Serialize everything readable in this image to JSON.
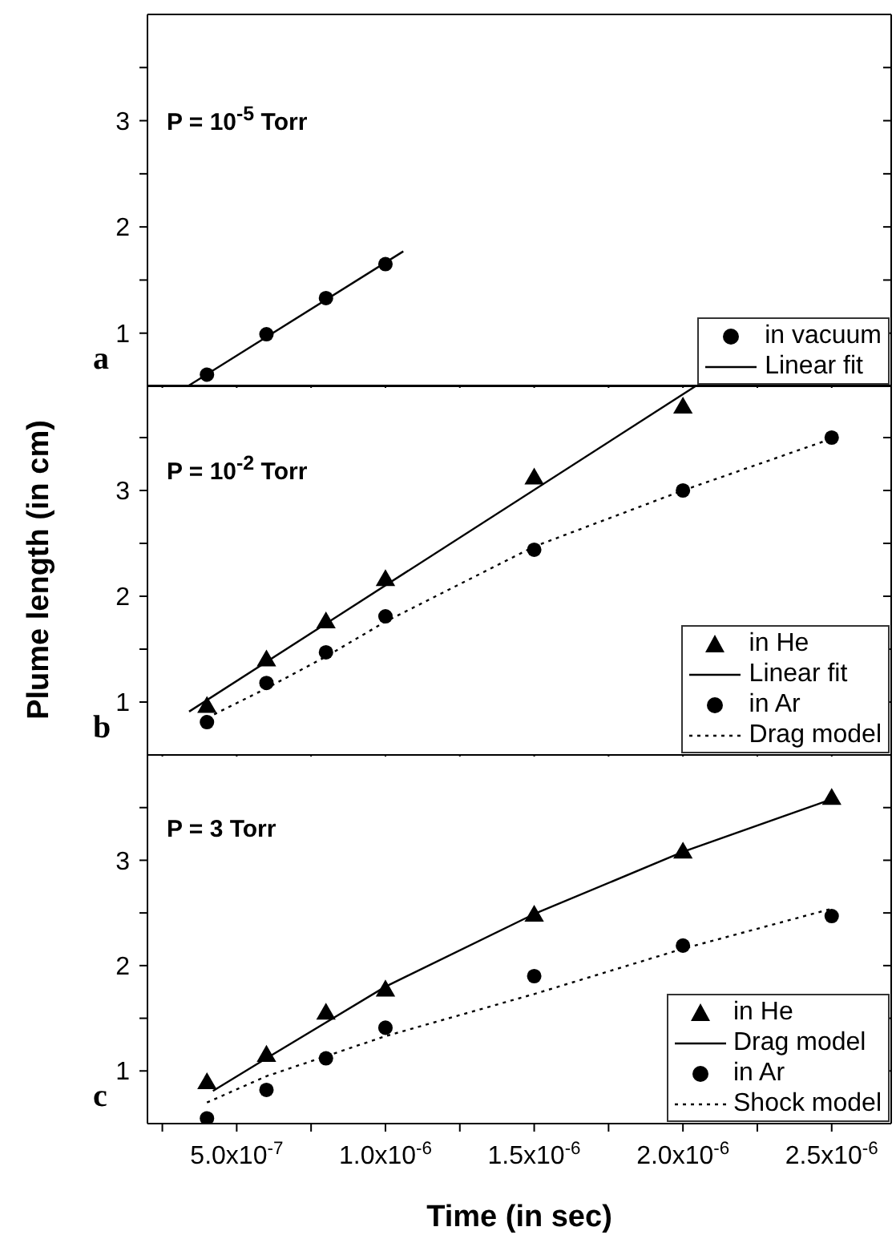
{
  "chart_data": [
    {
      "type": "scatter",
      "annotations": [
        "P = 10$^{-5}$ Torr",
        "a"
      ],
      "xlim": [
        2e-07,
        2.7e-06
      ],
      "ylim": [
        0.5,
        4.0
      ],
      "xticks": [
        {
          "value": 2.5e-07,
          "label": null
        },
        {
          "value": 5e-07,
          "label": null
        },
        {
          "value": 7.5e-07,
          "label": null
        },
        {
          "value": 1e-06,
          "label": null
        },
        {
          "value": 1.25e-06,
          "label": null
        },
        {
          "value": 1.5e-06,
          "label": null
        },
        {
          "value": 1.75e-06,
          "label": null
        },
        {
          "value": 2e-06,
          "label": null
        },
        {
          "value": 2.25e-06,
          "label": null
        },
        {
          "value": 2.5e-06,
          "label": null
        }
      ],
      "yticks": [
        1,
        {
          "value": 1.5,
          "label": null
        },
        2,
        {
          "value": 2.5,
          "label": null
        },
        3,
        {
          "value": 3.5,
          "label": null
        }
      ],
      "tick_labels": "y",
      "legend": "bottom right",
      "grid": false,
      "series": [
        {
          "name": "in vacuum",
          "marker": "circle",
          "color": "#000000",
          "x": [
            4e-07,
            6e-07,
            8e-07,
            1e-06
          ],
          "values": [
            0.61,
            0.99,
            1.33,
            1.65
          ]
        },
        {
          "name": "Linear fit",
          "type": "line",
          "line_style": "solid",
          "color": "#000000",
          "x": [
            3.35e-07,
            1.06e-06
          ],
          "values": [
            0.5,
            1.77
          ]
        }
      ]
    },
    {
      "type": "scatter",
      "annotations": [
        "P = 10$^{-2}$ Torr",
        "b"
      ],
      "ylabel": "Plume length (in cm)",
      "xlim": [
        2e-07,
        2.7e-06
      ],
      "ylim": [
        0.5,
        4.0
      ],
      "xticks": [
        {
          "value": 2.5e-07,
          "label": null
        },
        {
          "value": 5e-07,
          "label": null
        },
        {
          "value": 7.5e-07,
          "label": null
        },
        {
          "value": 1e-06,
          "label": null
        },
        {
          "value": 1.25e-06,
          "label": null
        },
        {
          "value": 1.5e-06,
          "label": null
        },
        {
          "value": 1.75e-06,
          "label": null
        },
        {
          "value": 2e-06,
          "label": null
        },
        {
          "value": 2.25e-06,
          "label": null
        },
        {
          "value": 2.5e-06,
          "label": null
        }
      ],
      "yticks": [
        1,
        {
          "value": 1.5,
          "label": null
        },
        2,
        {
          "value": 2.5,
          "label": null
        },
        3,
        {
          "value": 3.5,
          "label": null
        }
      ],
      "tick_labels": "y",
      "legend": "bottom right",
      "grid": false,
      "series": [
        {
          "name": "in He",
          "marker": "triangle",
          "color": "#000000",
          "x": [
            4e-07,
            6e-07,
            8e-07,
            1e-06,
            1.5e-06,
            2e-06
          ],
          "values": [
            0.95,
            1.39,
            1.75,
            2.15,
            3.11,
            3.78
          ]
        },
        {
          "name": "Linear fit",
          "type": "line",
          "line_style": "solid",
          "color": "#000000",
          "x": [
            3.4e-07,
            2.05e-06
          ],
          "values": [
            0.91,
            4.0
          ]
        },
        {
          "name": "in Ar",
          "marker": "circle",
          "color": "#000000",
          "x": [
            4e-07,
            6e-07,
            8e-07,
            1e-06,
            1.5e-06,
            2e-06,
            2.5e-06
          ],
          "values": [
            0.81,
            1.18,
            1.47,
            1.81,
            2.44,
            3.0,
            3.5
          ]
        },
        {
          "name": "Drag model",
          "type": "line",
          "line_style": "dotted",
          "color": "#000000",
          "x": [
            4e-07,
            6e-07,
            8e-07,
            1e-06,
            1.5e-06,
            2e-06,
            2.5e-06
          ],
          "values": [
            0.85,
            1.13,
            1.43,
            1.76,
            2.47,
            3.0,
            3.49
          ]
        }
      ]
    },
    {
      "type": "scatter",
      "annotations": [
        "P = 3 Torr",
        "c"
      ],
      "xlabel": "Time (in sec)",
      "xlim": [
        2e-07,
        2.7e-06
      ],
      "ylim": [
        0.5,
        4.0
      ],
      "xticks": [
        {
          "value": 2.5e-07,
          "label": null
        },
        {
          "value": 5e-07,
          "label": "5.0x10$^{-7}$"
        },
        {
          "value": 7.5e-07,
          "label": null
        },
        {
          "value": 1e-06,
          "label": "1.0x10$^{-6}$"
        },
        {
          "value": 1.25e-06,
          "label": null
        },
        {
          "value": 1.5e-06,
          "label": "1.5x10$^{-6}$"
        },
        {
          "value": 1.75e-06,
          "label": null
        },
        {
          "value": 2e-06,
          "label": "2.0x10$^{-6}$"
        },
        {
          "value": 2.25e-06,
          "label": null
        },
        {
          "value": 2.5e-06,
          "label": "2.5x10$^{-6}$"
        }
      ],
      "yticks": [
        1,
        {
          "value": 1.5,
          "label": null
        },
        2,
        {
          "value": 2.5,
          "label": null
        },
        3,
        {
          "value": 3.5,
          "label": null
        }
      ],
      "legend": "bottom right",
      "grid": false,
      "series": [
        {
          "name": "in He",
          "marker": "triangle",
          "color": "#000000",
          "x": [
            4e-07,
            6e-07,
            8e-07,
            1e-06,
            1.5e-06,
            2e-06,
            2.5e-06
          ],
          "values": [
            0.88,
            1.14,
            1.54,
            1.76,
            2.47,
            3.07,
            3.58
          ]
        },
        {
          "name": "Drag model",
          "type": "line",
          "line_style": "solid",
          "color": "#000000",
          "x": [
            4.2e-07,
            6e-07,
            1e-06,
            1.5e-06,
            2e-06,
            2.5e-06
          ],
          "values": [
            0.81,
            1.12,
            1.8,
            2.49,
            3.08,
            3.58
          ]
        },
        {
          "name": "in Ar",
          "marker": "circle",
          "color": "#000000",
          "x": [
            4e-07,
            6e-07,
            8e-07,
            1e-06,
            1.5e-06,
            2e-06,
            2.5e-06
          ],
          "values": [
            0.55,
            0.82,
            1.12,
            1.41,
            1.9,
            2.19,
            2.47
          ]
        },
        {
          "name": "Shock model",
          "type": "line",
          "line_style": "dotted",
          "color": "#000000",
          "x": [
            4e-07,
            6e-07,
            1e-06,
            1.5e-06,
            2e-06,
            2.5e-06
          ],
          "values": [
            0.7,
            0.95,
            1.33,
            1.73,
            2.16,
            2.54
          ]
        }
      ]
    }
  ]
}
